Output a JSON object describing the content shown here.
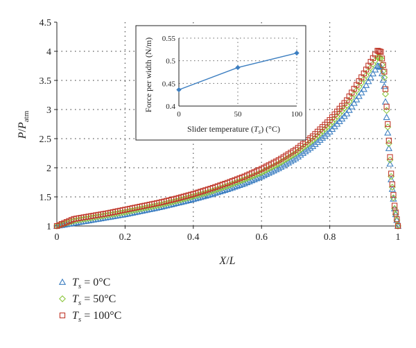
{
  "chart_data": [
    {
      "type": "scatter",
      "xlabel_main": "X",
      "xlabel_sep": "/",
      "xlabel_sub": "L",
      "ylabel_main": "P",
      "ylabel_sep": "/",
      "ylabel_P2": "P",
      "ylabel_sub": "atm",
      "xlim": [
        0,
        1
      ],
      "ylim": [
        1,
        4.5
      ],
      "xticks": [
        "0",
        "0.2",
        "0.4",
        "0.6",
        "0.8",
        "1"
      ],
      "yticks": [
        "1",
        "1.5",
        "2",
        "2.5",
        "3",
        "3.5",
        "4",
        "4.5"
      ],
      "grid": true,
      "legend_position": "bottom-left",
      "series": [
        {
          "name": "T_s = 0°C",
          "legend_T": "T",
          "legend_sub": "s",
          "legend_rest": " = 0°C",
          "marker": "triangle",
          "color": "#3d7fc1",
          "x": [
            0,
            0.05,
            0.1,
            0.15,
            0.2,
            0.25,
            0.3,
            0.35,
            0.4,
            0.45,
            0.5,
            0.55,
            0.6,
            0.65,
            0.7,
            0.75,
            0.8,
            0.85,
            0.9,
            0.92,
            0.94,
            0.95,
            0.96,
            0.97,
            0.98,
            0.99,
            1.0
          ],
          "y": [
            1.0,
            1.05,
            1.1,
            1.15,
            1.2,
            1.26,
            1.32,
            1.39,
            1.46,
            1.54,
            1.63,
            1.73,
            1.85,
            1.99,
            2.16,
            2.37,
            2.62,
            2.93,
            3.35,
            3.55,
            3.75,
            3.73,
            3.4,
            2.6,
            1.8,
            1.3,
            1.0
          ]
        },
        {
          "name": "T_s = 50°C",
          "legend_T": "T",
          "legend_sub": "s",
          "legend_rest": " = 50°C",
          "marker": "diamond",
          "color": "#8dc63f",
          "x": [
            0,
            0.05,
            0.1,
            0.15,
            0.2,
            0.25,
            0.3,
            0.35,
            0.4,
            0.45,
            0.5,
            0.55,
            0.6,
            0.65,
            0.7,
            0.75,
            0.8,
            0.85,
            0.9,
            0.92,
            0.94,
            0.95,
            0.96,
            0.97,
            0.98,
            0.99,
            1.0
          ],
          "y": [
            1.0,
            1.09,
            1.14,
            1.19,
            1.24,
            1.3,
            1.36,
            1.43,
            1.51,
            1.59,
            1.69,
            1.8,
            1.92,
            2.07,
            2.25,
            2.47,
            2.74,
            3.07,
            3.52,
            3.72,
            3.9,
            3.88,
            3.55,
            2.7,
            1.85,
            1.3,
            1.0
          ]
        },
        {
          "name": "T_s = 100°C",
          "legend_T": "T",
          "legend_sub": "s",
          "legend_rest": " = 100°C",
          "marker": "square",
          "color": "#c0392b",
          "x": [
            0,
            0.05,
            0.1,
            0.15,
            0.2,
            0.25,
            0.3,
            0.35,
            0.4,
            0.45,
            0.5,
            0.55,
            0.6,
            0.65,
            0.7,
            0.75,
            0.8,
            0.85,
            0.9,
            0.92,
            0.94,
            0.95,
            0.96,
            0.97,
            0.98,
            0.99,
            1.0
          ],
          "y": [
            1.0,
            1.12,
            1.17,
            1.22,
            1.28,
            1.34,
            1.4,
            1.47,
            1.55,
            1.64,
            1.74,
            1.85,
            1.98,
            2.13,
            2.31,
            2.54,
            2.82,
            3.16,
            3.62,
            3.82,
            4.01,
            3.99,
            3.65,
            2.75,
            1.9,
            1.35,
            1.0
          ]
        }
      ]
    },
    {
      "type": "line",
      "xlabel_text": "Slider temperature (",
      "xlabel_T": "T",
      "xlabel_sub": "s",
      "xlabel_end": ") (°C)",
      "ylabel": "Force per width (N/m)",
      "xlim": [
        0,
        100
      ],
      "ylim": [
        0.4,
        0.55
      ],
      "xticks": [
        "0",
        "50",
        "100"
      ],
      "yticks": [
        "0.4",
        "0.45",
        "0.5",
        "0.55"
      ],
      "grid": true,
      "color": "#3d7fc1",
      "x": [
        0,
        50,
        100
      ],
      "y": [
        0.436,
        0.485,
        0.517
      ]
    }
  ]
}
